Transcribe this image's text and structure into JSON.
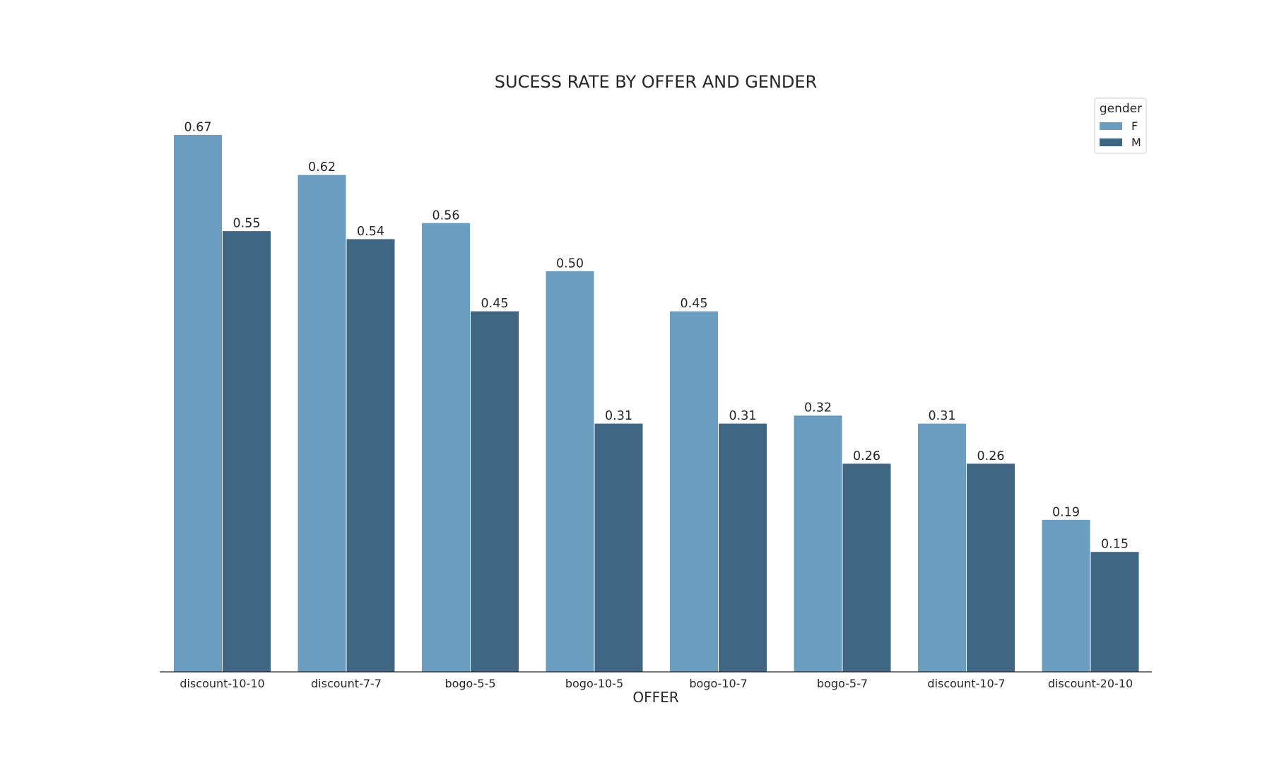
{
  "chart_data": {
    "type": "bar",
    "title": "SUCESS RATE BY OFFER AND GENDER",
    "xlabel": "OFFER",
    "ylabel": "",
    "categories": [
      "discount-10-10",
      "discount-7-7",
      "bogo-5-5",
      "bogo-10-5",
      "bogo-10-7",
      "bogo-5-7",
      "discount-10-7",
      "discount-20-10"
    ],
    "series": [
      {
        "name": "F",
        "color": "#6b9dc0",
        "values": [
          0.67,
          0.62,
          0.56,
          0.5,
          0.45,
          0.32,
          0.31,
          0.19
        ],
        "labels": [
          "0.67",
          "0.62",
          "0.56",
          "0.50",
          "0.45",
          "0.32",
          "0.31",
          "0.19"
        ]
      },
      {
        "name": "M",
        "color": "#3f6784",
        "values": [
          0.55,
          0.54,
          0.45,
          0.31,
          0.31,
          0.26,
          0.26,
          0.15
        ],
        "labels": [
          "0.55",
          "0.54",
          "0.45",
          "0.31",
          "0.31",
          "0.26",
          "0.26",
          "0.15"
        ]
      }
    ],
    "ylim": [
      0,
      0.71
    ],
    "grid": false,
    "y_axis_visible": false,
    "legend": {
      "title": "gender",
      "placement": "top-right"
    }
  }
}
